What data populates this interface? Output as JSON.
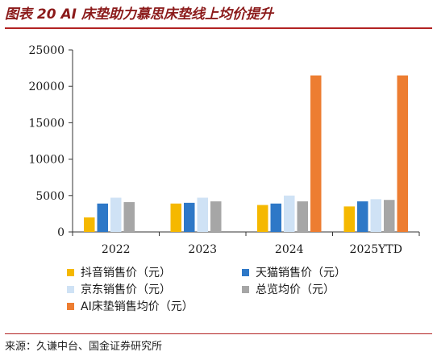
{
  "header": {
    "title": "图表 20 AI 床垫助力慕思床垫线上均价提升"
  },
  "footer": {
    "source": "来源：久谦中台、国金证券研究所"
  },
  "chart_data": {
    "type": "bar",
    "title": "",
    "xlabel": "",
    "ylabel": "",
    "ylim": [
      0,
      25000
    ],
    "yticks": [
      0,
      5000,
      10000,
      15000,
      20000,
      25000
    ],
    "grid": false,
    "legend_position": "bottom",
    "categories": [
      "2022",
      "2023",
      "2024",
      "2025YTD"
    ],
    "series": [
      {
        "name": "抖音销售价（元）",
        "color": "#f5b800",
        "values": [
          2000,
          3900,
          3700,
          3500
        ]
      },
      {
        "name": "天猫销售价（元）",
        "color": "#2e78c7",
        "values": [
          3900,
          4000,
          3900,
          4200
        ]
      },
      {
        "name": "京东销售价（元）",
        "color": "#cfe2f5",
        "values": [
          4700,
          4700,
          5000,
          4500
        ]
      },
      {
        "name": "总览均价（元）",
        "color": "#a6a6a6",
        "values": [
          4100,
          4200,
          4200,
          4400
        ]
      },
      {
        "name": "AI床垫销售均价（元）",
        "color": "#ed7d31",
        "values": [
          null,
          null,
          21500,
          21500
        ]
      }
    ]
  }
}
